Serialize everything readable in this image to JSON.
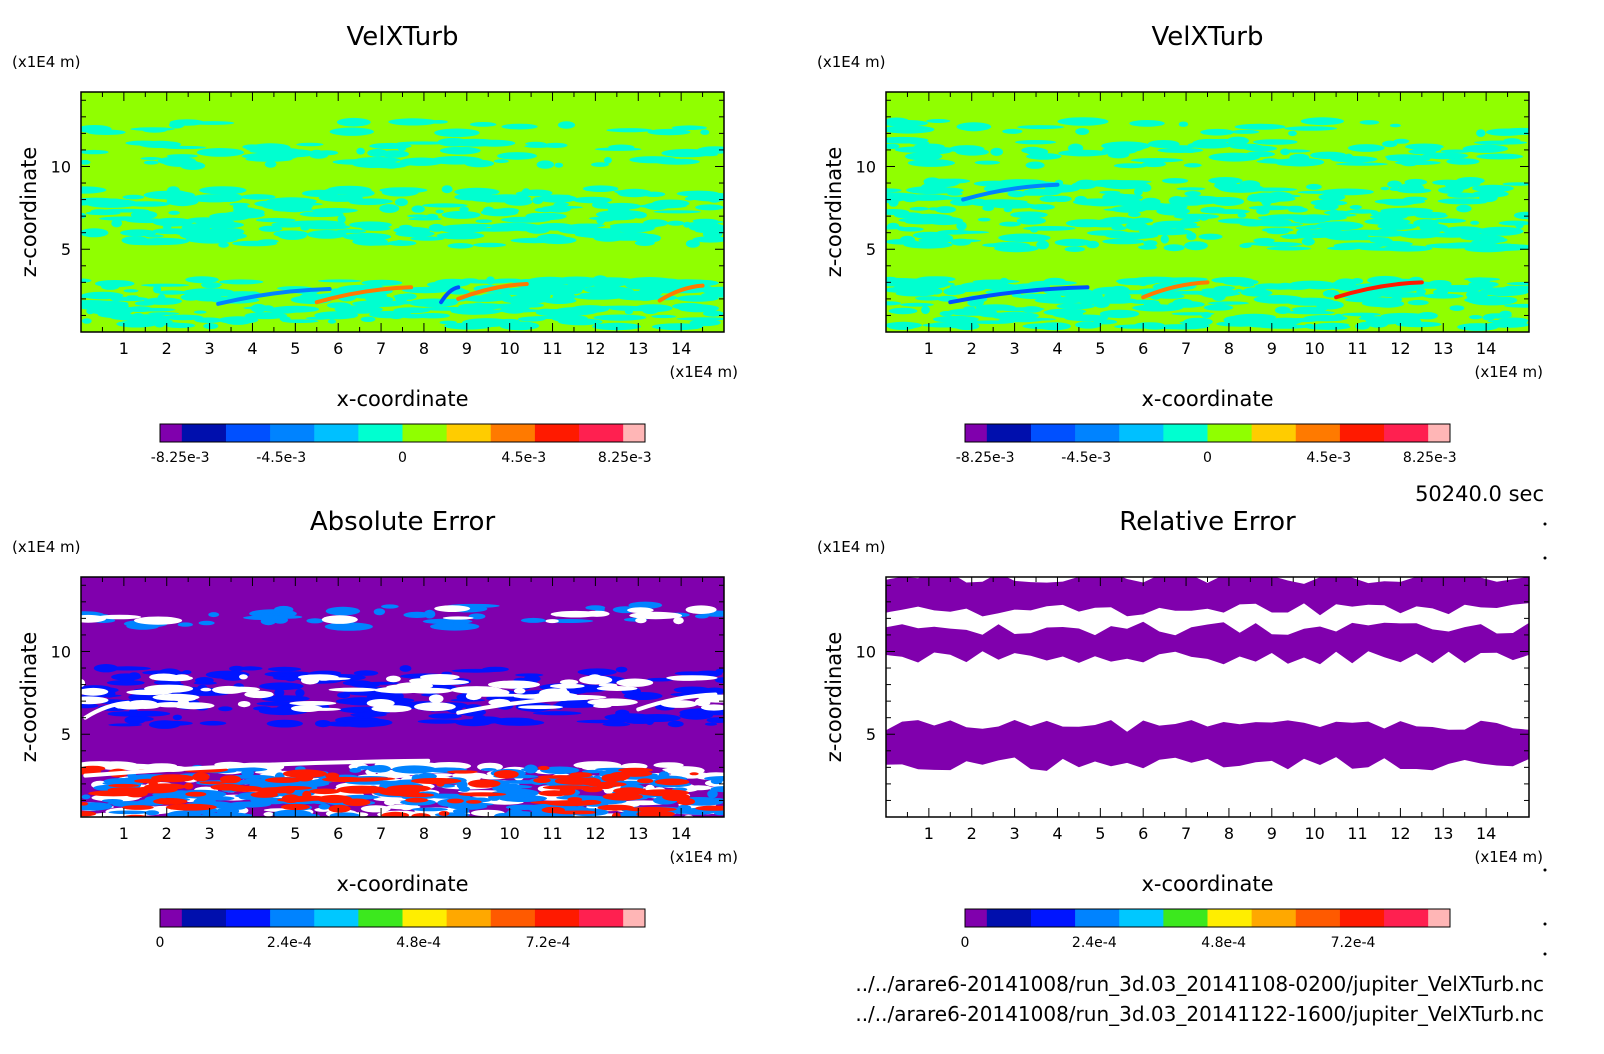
{
  "time_label": "50240.0 sec",
  "file_paths": [
    "../../arare6-20141008/run_3d.03_20141108-0200/jupiter_VelXTurb.nc",
    "../../arare6-20141008/run_3d.03_20141122-1600/jupiter_VelXTurb.nc"
  ],
  "colors": {
    "field_scale": [
      "#8000ad",
      "#000fad",
      "#0050ff",
      "#0083ff",
      "#00c0ff",
      "#00ffd0",
      "#90ff00",
      "#ffcc00",
      "#ff7a00",
      "#ff1a00",
      "#ff2050",
      "#ffb6b6"
    ],
    "error_scale": [
      "#8000ad",
      "#000fad",
      "#0015ff",
      "#0083ff",
      "#00c8ff",
      "#3ce81e",
      "#ffee00",
      "#ffa800",
      "#ff5a00",
      "#ff1a00",
      "#ff2050",
      "#ffb6b6"
    ]
  },
  "chart_data": [
    {
      "type": "heatmap",
      "title": "VelXTurb",
      "xlabel": "x-coordinate",
      "ylabel": "z-coordinate",
      "x_unit": "(x1E4 m)",
      "y_unit": "(x1E4 m)",
      "xlim": [
        0,
        15
      ],
      "ylim": [
        0,
        14.5
      ],
      "x_ticks": [
        1,
        2,
        3,
        4,
        5,
        6,
        7,
        8,
        9,
        10,
        11,
        12,
        13,
        14
      ],
      "y_ticks": [
        5,
        10
      ],
      "colorbar": {
        "ticks": [
          "-8.25e-3",
          "-4.5e-3",
          "0",
          "4.5e-3",
          "8.25e-3"
        ],
        "tick_values": [
          -0.00825,
          -0.0045,
          0,
          0.0045,
          0.00825
        ],
        "range": [
          -0.009,
          0.009
        ]
      },
      "background": "#90ff00",
      "bands": [
        {
          "y": 2.0,
          "h": 1.2,
          "color": "#00ffd0",
          "density": 0.85
        },
        {
          "y": 0.3,
          "h": 1.7,
          "color": "#00ffd0",
          "density": 0.55
        },
        {
          "y": 5.2,
          "h": 3.5,
          "color": "#00ffd0",
          "density": 0.5
        },
        {
          "y": 10.0,
          "h": 1.5,
          "color": "#00ffd0",
          "density": 0.35
        },
        {
          "y": 12.0,
          "h": 0.8,
          "color": "#00ffd0",
          "density": 0.2
        }
      ],
      "features": [
        {
          "x": 3.2,
          "y": 2.2,
          "len": 2.6,
          "color": "#0083ff"
        },
        {
          "x": 5.5,
          "y": 2.3,
          "len": 2.2,
          "color": "#ff7a00"
        },
        {
          "x": 8.8,
          "y": 2.5,
          "len": 1.6,
          "color": "#ff7a00"
        },
        {
          "x": 13.5,
          "y": 2.4,
          "len": 1.0,
          "color": "#ff7a00"
        },
        {
          "x": 8.4,
          "y": 2.3,
          "len": 0.4,
          "color": "#0050ff"
        }
      ]
    },
    {
      "type": "heatmap",
      "title": "VelXTurb",
      "xlabel": "x-coordinate",
      "ylabel": "z-coordinate",
      "x_unit": "(x1E4 m)",
      "y_unit": "(x1E4 m)",
      "xlim": [
        0,
        15
      ],
      "ylim": [
        0,
        14.5
      ],
      "x_ticks": [
        1,
        2,
        3,
        4,
        5,
        6,
        7,
        8,
        9,
        10,
        11,
        12,
        13,
        14
      ],
      "y_ticks": [
        5,
        10
      ],
      "colorbar": {
        "ticks": [
          "-8.25e-3",
          "-4.5e-3",
          "0",
          "4.5e-3",
          "8.25e-3"
        ],
        "tick_values": [
          -0.00825,
          -0.0045,
          0,
          0.0045,
          0.00825
        ],
        "range": [
          -0.009,
          0.009
        ]
      },
      "background": "#90ff00",
      "bands": [
        {
          "y": 2.0,
          "h": 1.2,
          "color": "#00ffd0",
          "density": 0.85
        },
        {
          "y": 0.3,
          "h": 1.7,
          "color": "#00ffd0",
          "density": 0.6
        },
        {
          "y": 5.0,
          "h": 4.2,
          "color": "#00ffd0",
          "density": 0.55
        },
        {
          "y": 10.0,
          "h": 1.6,
          "color": "#00ffd0",
          "density": 0.4
        },
        {
          "y": 12.0,
          "h": 0.8,
          "color": "#00ffd0",
          "density": 0.25
        }
      ],
      "features": [
        {
          "x": 1.5,
          "y": 2.3,
          "len": 3.2,
          "color": "#0050ff"
        },
        {
          "x": 6.0,
          "y": 2.6,
          "len": 1.5,
          "color": "#ff7a00"
        },
        {
          "x": 10.5,
          "y": 2.6,
          "len": 2.0,
          "color": "#ff1a00"
        },
        {
          "x": 1.8,
          "y": 8.5,
          "len": 2.2,
          "color": "#0083ff"
        }
      ]
    },
    {
      "type": "heatmap",
      "title": "Absolute Error",
      "xlabel": "x-coordinate",
      "ylabel": "z-coordinate",
      "x_unit": "(x1E4 m)",
      "y_unit": "(x1E4 m)",
      "xlim": [
        0,
        15
      ],
      "ylim": [
        0,
        14.5
      ],
      "x_ticks": [
        1,
        2,
        3,
        4,
        5,
        6,
        7,
        8,
        9,
        10,
        11,
        12,
        13,
        14
      ],
      "y_ticks": [
        5,
        10
      ],
      "colorbar": {
        "ticks": [
          "0",
          "2.4e-4",
          "4.8e-4",
          "7.2e-4"
        ],
        "tick_values": [
          0,
          0.00024,
          0.00048,
          0.00072
        ],
        "range": [
          0,
          0.0009
        ]
      },
      "background": "#8000ad",
      "bands": [
        {
          "y": 0.0,
          "h": 3.2,
          "color": "#ffffff",
          "density": 0.5
        },
        {
          "y": 0.0,
          "h": 3.0,
          "color": "#0083ff",
          "density": 0.55
        },
        {
          "y": 0.0,
          "h": 3.0,
          "color": "#ff1a00",
          "density": 0.3
        },
        {
          "y": 5.5,
          "h": 3.5,
          "color": "#0015ff",
          "density": 0.45
        },
        {
          "y": 6.5,
          "h": 2.0,
          "color": "#ffffff",
          "density": 0.3
        },
        {
          "y": 11.5,
          "h": 1.3,
          "color": "#0083ff",
          "density": 0.25
        },
        {
          "y": 11.8,
          "h": 0.8,
          "color": "#ffffff",
          "density": 0.15
        }
      ],
      "features": [
        {
          "x": 0.1,
          "y": 3.0,
          "len": 8.0,
          "color": "#ffffff"
        },
        {
          "x": 8.8,
          "y": 6.8,
          "len": 3.0,
          "color": "#ffffff"
        },
        {
          "x": 0.1,
          "y": 6.5,
          "len": 1.0,
          "color": "#ffffff"
        },
        {
          "x": 13.0,
          "y": 7.0,
          "len": 1.8,
          "color": "#ffffff"
        }
      ]
    },
    {
      "type": "heatmap",
      "title": "Relative Error",
      "xlabel": "x-coordinate",
      "ylabel": "z-coordinate",
      "x_unit": "(x1E4 m)",
      "y_unit": "(x1E4 m)",
      "xlim": [
        0,
        15
      ],
      "ylim": [
        0,
        14.5
      ],
      "x_ticks": [
        1,
        2,
        3,
        4,
        5,
        6,
        7,
        8,
        9,
        10,
        11,
        12,
        13,
        14
      ],
      "y_ticks": [
        5,
        10
      ],
      "colorbar": {
        "ticks": [
          "0",
          "2.4e-4",
          "4.8e-4",
          "7.2e-4"
        ],
        "tick_values": [
          0,
          0.00024,
          0.00048,
          0.00072
        ],
        "range": [
          0,
          0.0009
        ]
      },
      "background": "#ffffff",
      "regions": [
        {
          "y0": 12.5,
          "y1": 14.5,
          "color": "#8000ad"
        },
        {
          "y0": 9.6,
          "y1": 11.4,
          "color": "#8000ad"
        },
        {
          "y0": 3.2,
          "y1": 5.5,
          "color": "#8000ad"
        }
      ]
    }
  ]
}
